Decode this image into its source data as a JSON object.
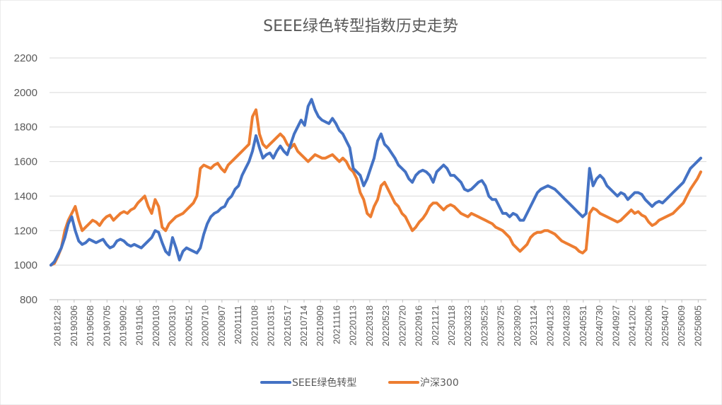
{
  "chart_data": {
    "type": "line",
    "title": "SEEE绿色转型指数历史走势",
    "xlabel": "",
    "ylabel": "",
    "ylim": [
      800,
      2200
    ],
    "yticks": [
      800,
      1000,
      1200,
      1400,
      1600,
      1800,
      2000,
      2200
    ],
    "grid": true,
    "legend_position": "bottom",
    "x_tick_labels": [
      "20181228",
      "20190306",
      "20190508",
      "20190705",
      "20190902",
      "20191106",
      "20200103",
      "20200310",
      "20200512",
      "20200710",
      "20200907",
      "20201111",
      "20210108",
      "20210315",
      "20210517",
      "20210714",
      "20210909",
      "20211116",
      "20220113",
      "20220318",
      "20220523",
      "20220720",
      "20220916",
      "20221121",
      "20230118",
      "20230323",
      "20230525",
      "20230725",
      "20230920",
      "20231124",
      "20240123",
      "20240328",
      "20240531",
      "20240730",
      "20240927",
      "20241202",
      "20250206",
      "20250407",
      "20250609",
      "20250805"
    ],
    "series": [
      {
        "name": "SEEE绿色转型",
        "color": "#4472C4",
        "values": [
          1000,
          1020,
          1060,
          1100,
          1160,
          1240,
          1280,
          1200,
          1140,
          1120,
          1130,
          1150,
          1140,
          1130,
          1140,
          1150,
          1120,
          1100,
          1110,
          1140,
          1150,
          1140,
          1120,
          1110,
          1120,
          1110,
          1100,
          1120,
          1140,
          1160,
          1200,
          1190,
          1130,
          1080,
          1060,
          1160,
          1100,
          1030,
          1080,
          1100,
          1090,
          1080,
          1070,
          1100,
          1180,
          1240,
          1280,
          1300,
          1310,
          1330,
          1340,
          1380,
          1400,
          1440,
          1460,
          1520,
          1560,
          1600,
          1660,
          1750,
          1680,
          1620,
          1640,
          1650,
          1620,
          1660,
          1690,
          1660,
          1640,
          1700,
          1760,
          1800,
          1840,
          1810,
          1920,
          1960,
          1900,
          1860,
          1840,
          1830,
          1820,
          1850,
          1820,
          1780,
          1760,
          1720,
          1680,
          1560,
          1540,
          1520,
          1460,
          1500,
          1560,
          1620,
          1720,
          1760,
          1700,
          1680,
          1650,
          1620,
          1580,
          1560,
          1540,
          1500,
          1480,
          1520,
          1540,
          1550,
          1540,
          1520,
          1480,
          1540,
          1560,
          1580,
          1560,
          1520,
          1520,
          1500,
          1480,
          1440,
          1430,
          1440,
          1460,
          1480,
          1490,
          1460,
          1400,
          1380,
          1380,
          1340,
          1300,
          1300,
          1280,
          1300,
          1290,
          1260,
          1260,
          1300,
          1340,
          1380,
          1420,
          1440,
          1450,
          1460,
          1450,
          1440,
          1420,
          1400,
          1380,
          1360,
          1340,
          1320,
          1300,
          1280,
          1300,
          1560,
          1460,
          1500,
          1520,
          1500,
          1460,
          1440,
          1420,
          1400,
          1420,
          1410,
          1380,
          1400,
          1420,
          1420,
          1410,
          1380,
          1360,
          1340,
          1360,
          1370,
          1360,
          1380,
          1400,
          1420,
          1440,
          1460,
          1480,
          1520,
          1560,
          1580,
          1600,
          1620
        ]
      },
      {
        "name": "沪深300",
        "color": "#ED7D31",
        "values": [
          1000,
          1010,
          1050,
          1100,
          1200,
          1260,
          1300,
          1340,
          1260,
          1200,
          1220,
          1240,
          1260,
          1250,
          1230,
          1260,
          1280,
          1290,
          1260,
          1280,
          1300,
          1310,
          1300,
          1320,
          1330,
          1360,
          1380,
          1400,
          1340,
          1300,
          1380,
          1340,
          1220,
          1200,
          1240,
          1260,
          1280,
          1290,
          1300,
          1320,
          1340,
          1360,
          1400,
          1560,
          1580,
          1570,
          1560,
          1580,
          1590,
          1560,
          1540,
          1580,
          1600,
          1620,
          1640,
          1660,
          1680,
          1700,
          1860,
          1900,
          1760,
          1700,
          1680,
          1700,
          1720,
          1740,
          1760,
          1740,
          1700,
          1680,
          1700,
          1660,
          1640,
          1620,
          1600,
          1620,
          1640,
          1630,
          1620,
          1620,
          1630,
          1640,
          1620,
          1600,
          1620,
          1600,
          1560,
          1540,
          1500,
          1420,
          1380,
          1300,
          1280,
          1340,
          1380,
          1460,
          1480,
          1440,
          1400,
          1360,
          1340,
          1300,
          1280,
          1240,
          1200,
          1220,
          1250,
          1270,
          1300,
          1340,
          1360,
          1360,
          1340,
          1320,
          1340,
          1350,
          1340,
          1320,
          1300,
          1290,
          1280,
          1300,
          1290,
          1280,
          1270,
          1260,
          1250,
          1240,
          1220,
          1210,
          1200,
          1180,
          1160,
          1120,
          1100,
          1080,
          1100,
          1120,
          1160,
          1180,
          1190,
          1190,
          1200,
          1200,
          1190,
          1180,
          1160,
          1140,
          1130,
          1120,
          1110,
          1100,
          1080,
          1070,
          1090,
          1300,
          1330,
          1320,
          1300,
          1290,
          1280,
          1270,
          1260,
          1250,
          1260,
          1280,
          1300,
          1320,
          1300,
          1310,
          1290,
          1280,
          1250,
          1230,
          1240,
          1260,
          1270,
          1280,
          1290,
          1300,
          1320,
          1340,
          1360,
          1400,
          1440,
          1470,
          1500,
          1540
        ]
      }
    ]
  }
}
